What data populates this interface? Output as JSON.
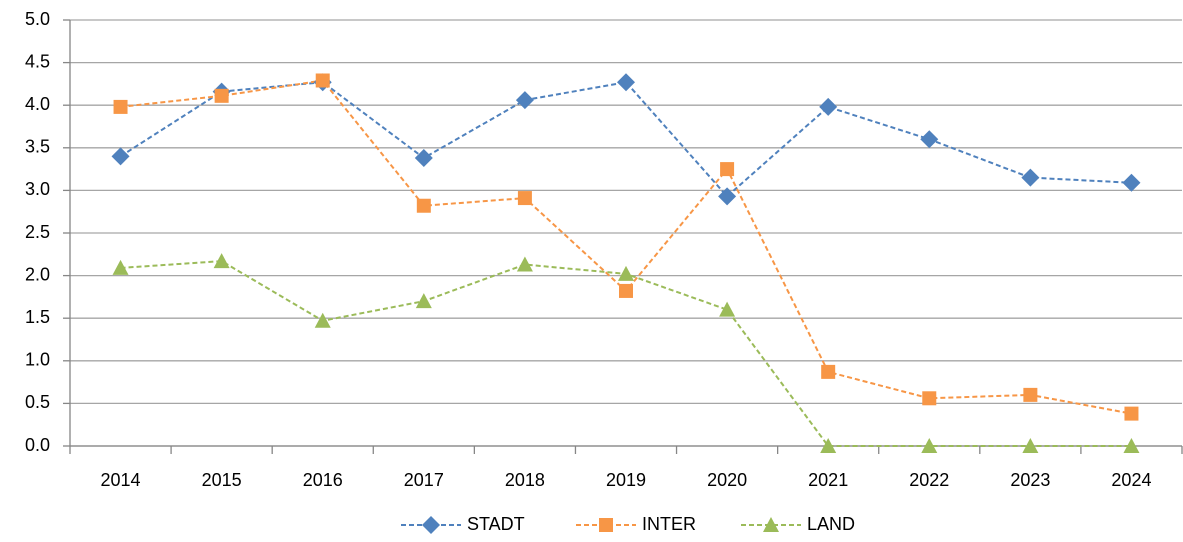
{
  "chart_data": {
    "type": "line",
    "categories": [
      "2014",
      "2015",
      "2016",
      "2017",
      "2018",
      "2019",
      "2020",
      "2021",
      "2022",
      "2023",
      "2024"
    ],
    "series": [
      {
        "name": "STADT",
        "color": "#4f81bd",
        "marker": "diamond",
        "values": [
          3.4,
          4.16,
          4.27,
          3.38,
          4.06,
          4.27,
          2.93,
          3.98,
          3.6,
          3.15,
          3.09
        ]
      },
      {
        "name": "INTER",
        "color": "#f79646",
        "marker": "square",
        "values": [
          3.98,
          4.11,
          4.29,
          2.82,
          2.91,
          1.82,
          3.25,
          0.87,
          0.56,
          0.6,
          0.38
        ]
      },
      {
        "name": "LAND",
        "color": "#9bbb59",
        "marker": "triangle",
        "values": [
          2.09,
          2.17,
          1.47,
          1.7,
          2.13,
          2.02,
          1.6,
          0,
          0,
          0,
          0
        ]
      }
    ],
    "ylim": [
      0,
      5
    ],
    "yticks": [
      {
        "value": 0,
        "label": "0.0"
      },
      0.5,
      {
        "value": 1,
        "label": "1.0"
      },
      1.5,
      {
        "value": 2,
        "label": "2.0"
      },
      2.5,
      {
        "value": 3,
        "label": "3.0"
      },
      3.5,
      {
        "value": 4,
        "label": "4.0"
      },
      4.5,
      {
        "value": 5,
        "label": "5.0"
      }
    ],
    "grid": true,
    "legend": "bottom",
    "line_style": "dashed"
  }
}
